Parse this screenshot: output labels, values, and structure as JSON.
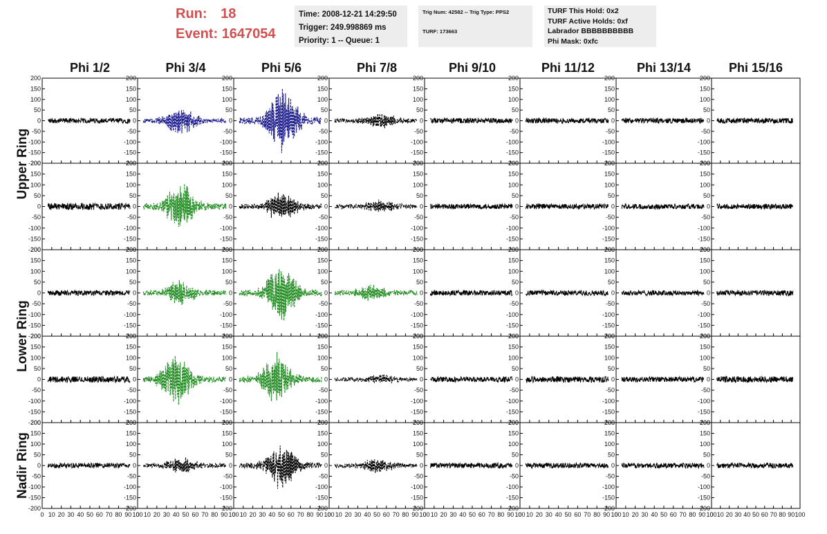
{
  "header": {
    "run_label": "Run:",
    "run_value": "18",
    "event_label": "Event:",
    "event_value": "1647054",
    "time_line": "Time: 2008-12-21 14:29:50",
    "trigger_line": "Trigger: 249.998869 ms",
    "priority_line": "Priority: 1 -- Queue: 1",
    "trig_num_line": "Trig Num: 42582 -- Trig Type: PPS2",
    "turf_line": "TURF: 173663",
    "turf_hold_line": "TURF This Hold: 0x2",
    "turf_active_line": "TURF Active Holds: 0xf",
    "labrador_line": "Labrador BBBBBBBBBB",
    "phi_mask_line": "Phi Mask: 0xfc"
  },
  "colors": {
    "run_text": "#d05050",
    "header_box": "#ededed",
    "trace_black": "#000000",
    "trace_blue": "#1a1a8c",
    "trace_green": "#1e8c1e"
  },
  "chart_data": {
    "type": "line",
    "columns": [
      "Phi 1/2",
      "Phi 3/4",
      "Phi 5/6",
      "Phi 7/8",
      "Phi 9/10",
      "Phi 11/12",
      "Phi 13/14",
      "Phi 15/16"
    ],
    "rows": [
      "Upper Ring",
      "Lower Ring",
      "Nadir Ring"
    ],
    "panel_rows": 5,
    "row_groups": [
      {
        "label": "Upper Ring",
        "panel_rows": [
          0,
          1
        ]
      },
      {
        "label": "Lower Ring",
        "panel_rows": [
          2,
          3
        ]
      },
      {
        "label": "Nadir Ring",
        "panel_rows": [
          4
        ]
      }
    ],
    "xlim": [
      0,
      100
    ],
    "ylim": [
      -200,
      200
    ],
    "ylim_nadir": [
      -200,
      200
    ],
    "x_ticks": [
      0,
      10,
      20,
      30,
      40,
      50,
      60,
      70,
      80,
      90,
      100
    ],
    "x_tick_labels": [
      "0",
      "10",
      "20",
      "30",
      "40",
      "50",
      "60",
      "70",
      "80",
      "90",
      "100"
    ],
    "y_ticks": [
      200,
      150,
      100,
      50,
      0,
      -50,
      -100,
      -150,
      -200
    ],
    "y_tick_labels": [
      "200",
      "150",
      "100",
      "50",
      "0",
      "-50",
      "-100",
      "-150",
      "-200"
    ],
    "y_ticks_nadir": [
      200,
      150,
      100,
      50,
      0,
      -50,
      -100,
      -150,
      -200
    ],
    "y_tick_labels_nadir": [
      "200",
      "150",
      "100",
      "50",
      "0",
      "-50",
      "-100",
      "-150",
      "-200"
    ],
    "grid": false,
    "panels": [
      [
        {
          "style": "solid",
          "color": "black",
          "noise": 12,
          "peak": 0,
          "center": 50
        },
        {
          "style": "dashed",
          "color": "blue",
          "noise": 10,
          "peak": 70,
          "center": 45
        },
        {
          "style": "dashed",
          "color": "blue",
          "noise": 15,
          "peak": 160,
          "center": 52
        },
        {
          "style": "dashed",
          "color": "black",
          "noise": 10,
          "peak": 35,
          "center": 55
        },
        {
          "style": "solid",
          "color": "black",
          "noise": 12,
          "peak": 0,
          "center": 50
        },
        {
          "style": "solid",
          "color": "black",
          "noise": 12,
          "peak": 0,
          "center": 50
        },
        {
          "style": "solid",
          "color": "black",
          "noise": 12,
          "peak": 0,
          "center": 50
        },
        {
          "style": "solid",
          "color": "black",
          "noise": 12,
          "peak": 0,
          "center": 50
        }
      ],
      [
        {
          "style": "solid",
          "color": "black",
          "noise": 16,
          "peak": 0,
          "center": 50
        },
        {
          "style": "dashed",
          "color": "green",
          "noise": 14,
          "peak": 110,
          "center": 45
        },
        {
          "style": "dashed",
          "color": "black",
          "noise": 12,
          "peak": 70,
          "center": 50
        },
        {
          "style": "dashed",
          "color": "black",
          "noise": 10,
          "peak": 25,
          "center": 55
        },
        {
          "style": "solid",
          "color": "black",
          "noise": 12,
          "peak": 0,
          "center": 50
        },
        {
          "style": "solid",
          "color": "black",
          "noise": 12,
          "peak": 0,
          "center": 50
        },
        {
          "style": "solid",
          "color": "black",
          "noise": 12,
          "peak": 0,
          "center": 50
        },
        {
          "style": "solid",
          "color": "black",
          "noise": 12,
          "peak": 0,
          "center": 50
        }
      ],
      [
        {
          "style": "solid",
          "color": "black",
          "noise": 12,
          "peak": 0,
          "center": 50
        },
        {
          "style": "dashed",
          "color": "green",
          "noise": 12,
          "peak": 55,
          "center": 45
        },
        {
          "style": "dashed",
          "color": "green",
          "noise": 14,
          "peak": 140,
          "center": 50
        },
        {
          "style": "dashed",
          "color": "green",
          "noise": 12,
          "peak": 35,
          "center": 45
        },
        {
          "style": "solid",
          "color": "black",
          "noise": 12,
          "peak": 0,
          "center": 50
        },
        {
          "style": "solid",
          "color": "black",
          "noise": 12,
          "peak": 0,
          "center": 50
        },
        {
          "style": "solid",
          "color": "black",
          "noise": 12,
          "peak": 0,
          "center": 50
        },
        {
          "style": "solid",
          "color": "black",
          "noise": 12,
          "peak": 0,
          "center": 50
        }
      ],
      [
        {
          "style": "solid",
          "color": "black",
          "noise": 14,
          "peak": 0,
          "center": 50
        },
        {
          "style": "dashed",
          "color": "green",
          "noise": 14,
          "peak": 120,
          "center": 40
        },
        {
          "style": "dashed",
          "color": "green",
          "noise": 14,
          "peak": 120,
          "center": 45
        },
        {
          "style": "dashed",
          "color": "black",
          "noise": 8,
          "peak": 20,
          "center": 55
        },
        {
          "style": "solid",
          "color": "black",
          "noise": 12,
          "peak": 0,
          "center": 50
        },
        {
          "style": "solid",
          "color": "black",
          "noise": 14,
          "peak": 0,
          "center": 50
        },
        {
          "style": "solid",
          "color": "black",
          "noise": 12,
          "peak": 0,
          "center": 50
        },
        {
          "style": "solid",
          "color": "black",
          "noise": 14,
          "peak": 0,
          "center": 50
        }
      ],
      [
        {
          "style": "solid",
          "color": "black",
          "noise": 12,
          "peak": 0,
          "center": 50
        },
        {
          "style": "dashed",
          "color": "black",
          "noise": 10,
          "peak": 35,
          "center": 45
        },
        {
          "style": "dashed",
          "color": "black",
          "noise": 14,
          "peak": 110,
          "center": 50
        },
        {
          "style": "dashed",
          "color": "black",
          "noise": 10,
          "peak": 35,
          "center": 50
        },
        {
          "style": "solid",
          "color": "black",
          "noise": 12,
          "peak": 0,
          "center": 50
        },
        {
          "style": "solid",
          "color": "black",
          "noise": 12,
          "peak": 0,
          "center": 50
        },
        {
          "style": "solid",
          "color": "black",
          "noise": 12,
          "peak": 0,
          "center": 50
        },
        {
          "style": "solid",
          "color": "black",
          "noise": 12,
          "peak": 0,
          "center": 50
        }
      ]
    ]
  }
}
